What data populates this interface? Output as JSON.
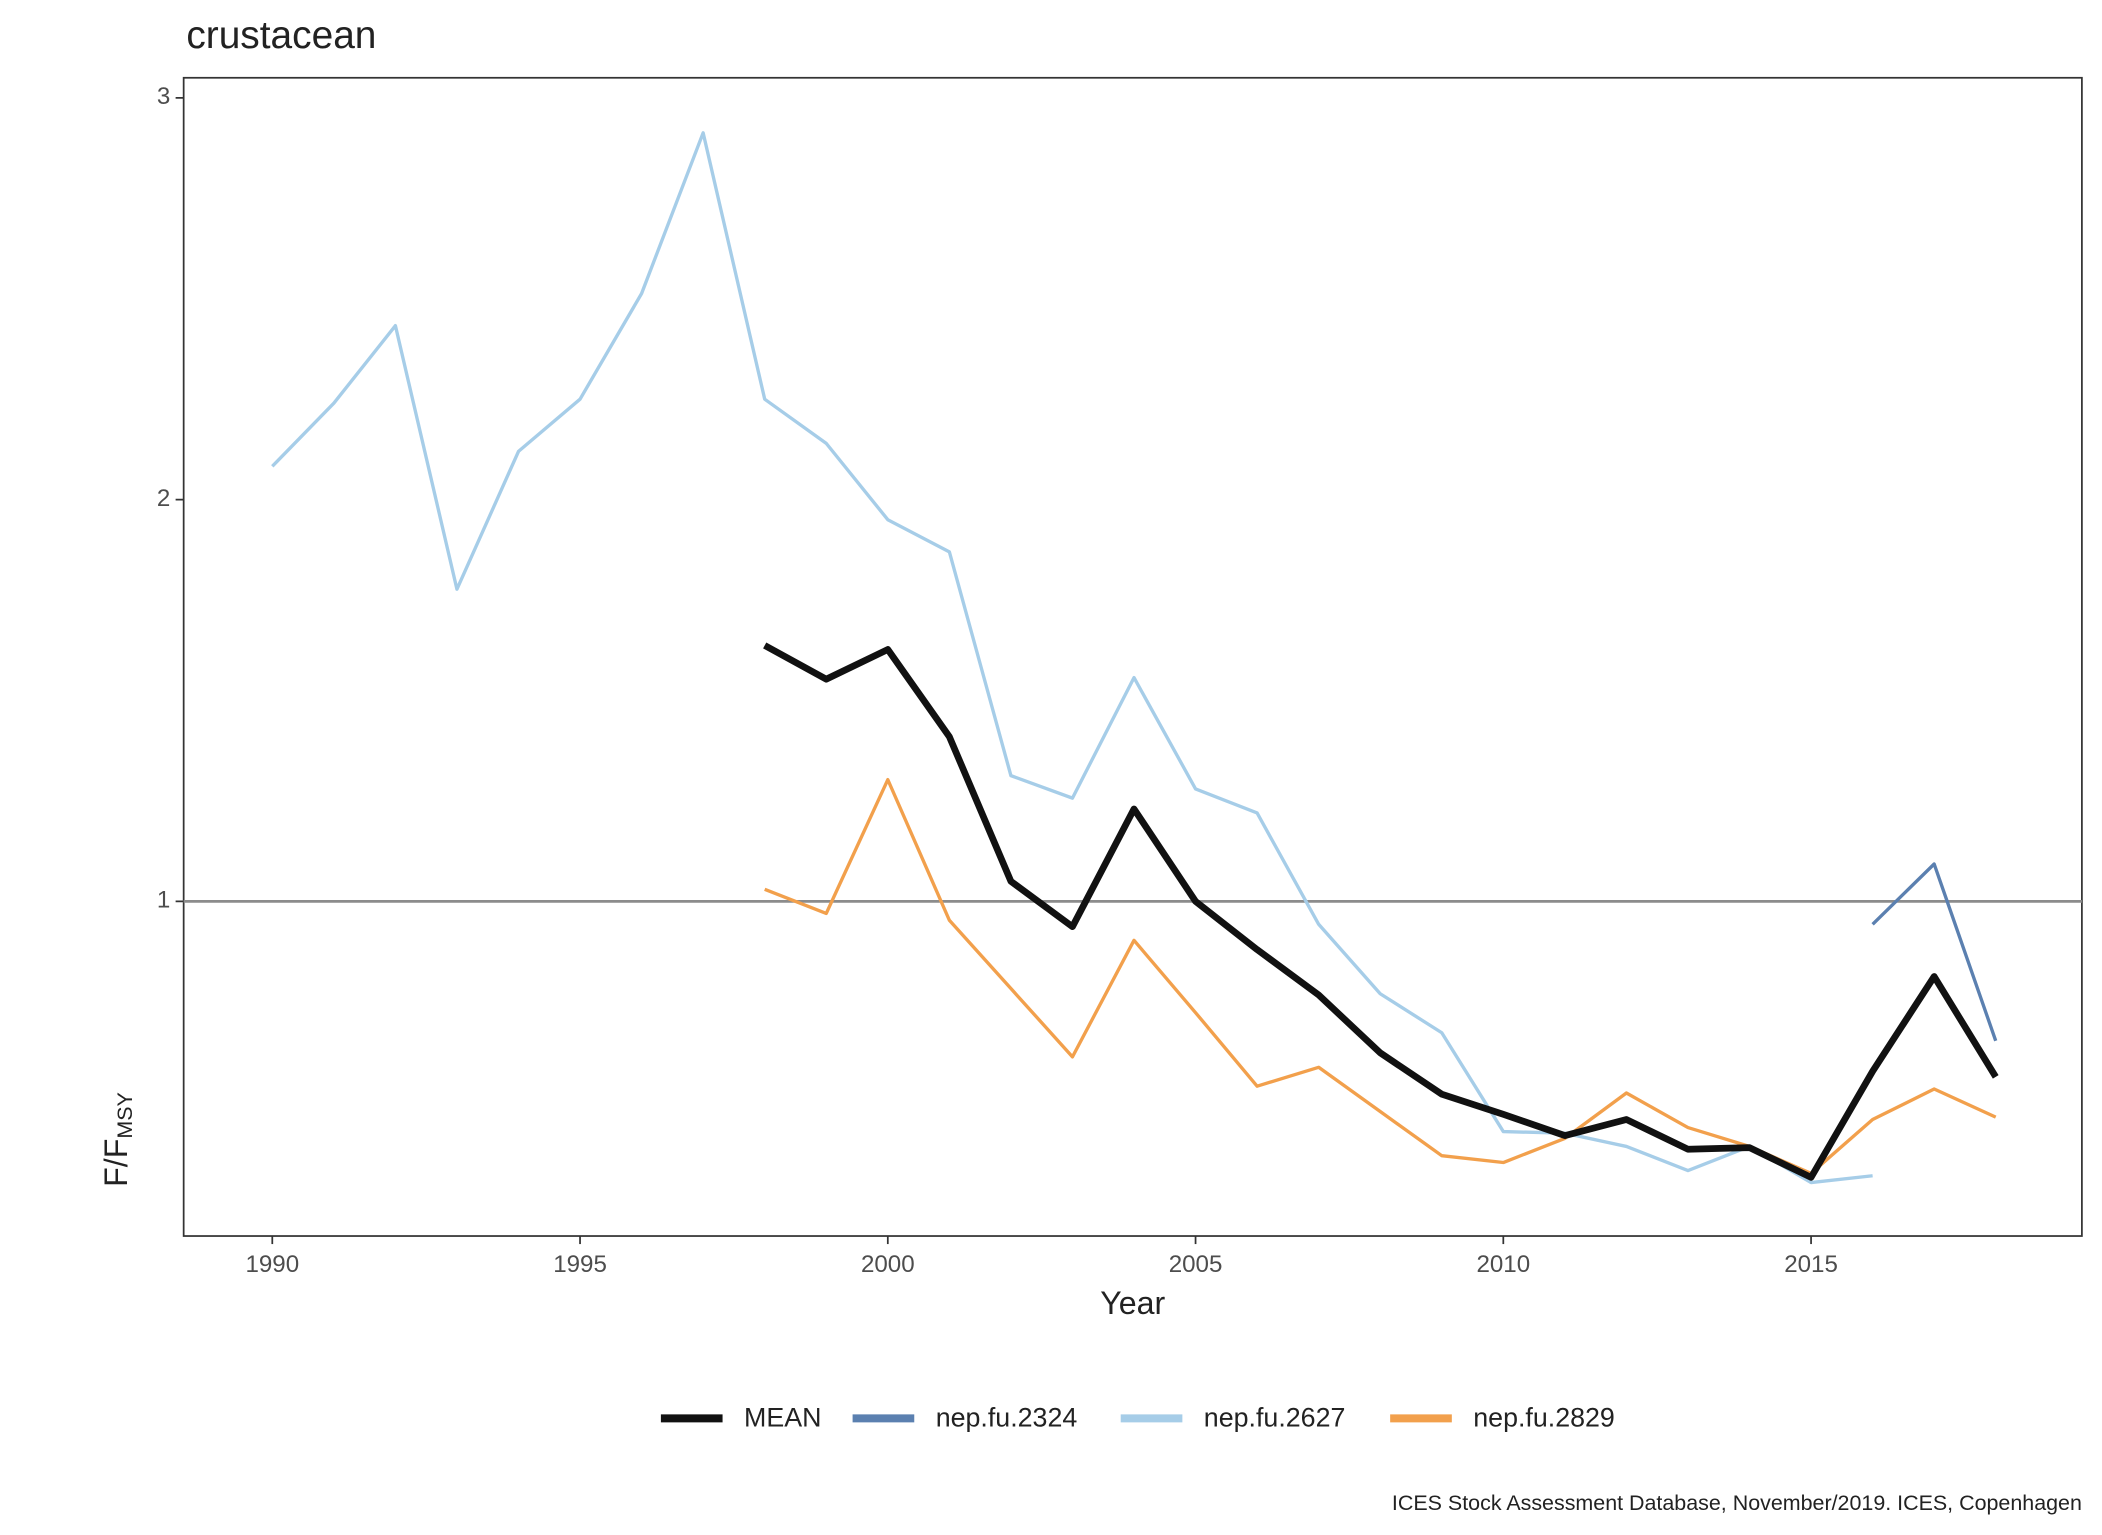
{
  "chart_data": {
    "type": "line",
    "title": "crustacean",
    "xlabel": "Year",
    "ylabel_main": "F/F",
    "ylabel_sub": "MSY",
    "caption": "ICES Stock Assessment Database, November/2019. ICES, Copenhagen",
    "x": [
      1990,
      1991,
      1992,
      1993,
      1994,
      1995,
      1996,
      1997,
      1998,
      1999,
      2000,
      2001,
      2002,
      2003,
      2004,
      2005,
      2006,
      2007,
      2008,
      2009,
      2010,
      2011,
      2012,
      2013,
      2014,
      2015,
      2016,
      2017,
      2018
    ],
    "xlim": [
      1988.56,
      2019.4
    ],
    "xticks": [
      1990,
      1995,
      2000,
      2005,
      2010,
      2015
    ],
    "ylim": [
      0.167,
      3.05
    ],
    "yticks": [
      1,
      2,
      3
    ],
    "hline": 1,
    "hline_color": "#8c8c8c",
    "legend": "bottom",
    "series": [
      {
        "name": "MEAN",
        "color": "#111111",
        "width": 5,
        "values": [
          null,
          null,
          null,
          null,
          null,
          null,
          null,
          null,
          1.637,
          1.553,
          1.627,
          1.41,
          1.05,
          0.937,
          1.23,
          1.0,
          0.88,
          0.767,
          0.623,
          0.52,
          0.47,
          0.417,
          0.457,
          0.383,
          0.387,
          0.313,
          0.577,
          0.813,
          0.563
        ]
      },
      {
        "name": "nep.fu.2324",
        "color": "#5b80b0",
        "width": 2.5,
        "values": [
          null,
          null,
          null,
          null,
          null,
          null,
          null,
          null,
          null,
          null,
          null,
          null,
          null,
          null,
          null,
          null,
          null,
          null,
          null,
          null,
          null,
          null,
          null,
          null,
          null,
          null,
          0.943,
          1.093,
          0.653
        ]
      },
      {
        "name": "nep.fu.2627",
        "color": "#a6cde8",
        "width": 2.5,
        "values": [
          2.083,
          2.24,
          2.433,
          1.777,
          2.12,
          2.25,
          2.513,
          2.913,
          2.25,
          2.14,
          1.95,
          1.87,
          1.313,
          1.257,
          1.557,
          1.28,
          1.22,
          0.943,
          0.77,
          0.673,
          0.427,
          0.423,
          0.39,
          0.33,
          0.39,
          0.3,
          0.317,
          null,
          null
        ]
      },
      {
        "name": "nep.fu.2829",
        "color": "#f2a04c",
        "width": 2.5,
        "values": [
          null,
          null,
          null,
          null,
          null,
          null,
          null,
          null,
          1.03,
          0.97,
          1.303,
          0.953,
          0.783,
          0.613,
          0.903,
          0.723,
          0.54,
          0.587,
          0.477,
          0.367,
          0.35,
          0.41,
          0.523,
          0.437,
          0.39,
          0.323,
          0.457,
          0.533,
          0.463
        ]
      }
    ]
  }
}
